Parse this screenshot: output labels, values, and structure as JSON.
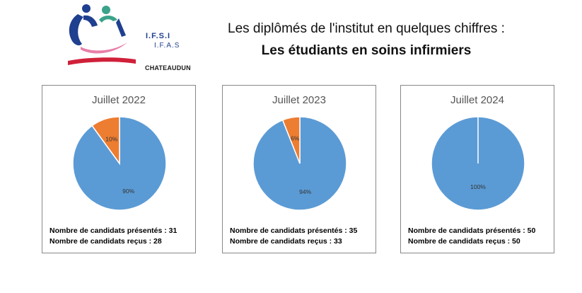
{
  "logo": {
    "line1": "I.F.S.I",
    "line2": "I.F.A.S",
    "city": "CHATEAUDUN"
  },
  "header": {
    "line1": "Les diplômés de l'institut en quelques chiffres :",
    "line2": "Les étudiants en soins infirmiers"
  },
  "colors": {
    "recus": "#5b9bd5",
    "non_recus": "#ed7d31"
  },
  "chart_data": [
    {
      "type": "pie",
      "title": "Juillet 2022",
      "slices": [
        {
          "label": "90%",
          "value": 90,
          "color": "#5b9bd5"
        },
        {
          "label": "10%",
          "value": 10,
          "color": "#ed7d31"
        }
      ],
      "stats": [
        "Nombre de candidats présentés : 31",
        "Nombre de candidats reçus : 28"
      ]
    },
    {
      "type": "pie",
      "title": "Juillet 2023",
      "slices": [
        {
          "label": "94%",
          "value": 94,
          "color": "#5b9bd5"
        },
        {
          "label": "6%",
          "value": 6,
          "color": "#ed7d31"
        }
      ],
      "stats": [
        "Nombre de candidats présentés : 35",
        "Nombre de candidats reçus : 33"
      ]
    },
    {
      "type": "pie",
      "title": "Juillet 2024",
      "slices": [
        {
          "label": "100%",
          "value": 100,
          "color": "#5b9bd5"
        }
      ],
      "stats": [
        "Nombre de candidats présentés : 50",
        "Nombre de candidats reçus : 50"
      ]
    }
  ]
}
